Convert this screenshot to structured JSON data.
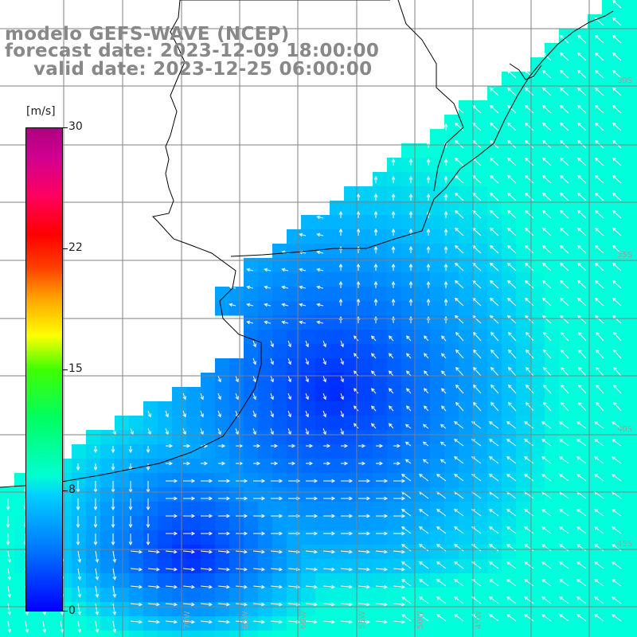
{
  "title": {
    "model": "modelo GEFS-WAVE (NCEP)",
    "forecast": "forecast date: 2023-12-09 18:00:00",
    "valid": "valid date: 2023-12-25 06:00:00"
  },
  "colorbar": {
    "unit": "[m/s]",
    "ticks": [
      "30",
      "22",
      "15",
      "8",
      "0"
    ],
    "range": [
      0,
      30
    ]
  },
  "colors": {
    "land": "#ffffff",
    "coast": "#000000",
    "grid": "#808080",
    "arrows": "#ffffff",
    "low_speed": "#0000ff",
    "mid_speed": "#00b0ff",
    "high_speed": "#00ffe0"
  },
  "map": {
    "field": "wind speed and direction",
    "region": "south-west Atlantic",
    "lat_labels": [
      "30S",
      "35S",
      "40S",
      "45S"
    ],
    "lon_labels": [
      "70W",
      "65W",
      "60W",
      "55W",
      "50W",
      "45W"
    ]
  }
}
